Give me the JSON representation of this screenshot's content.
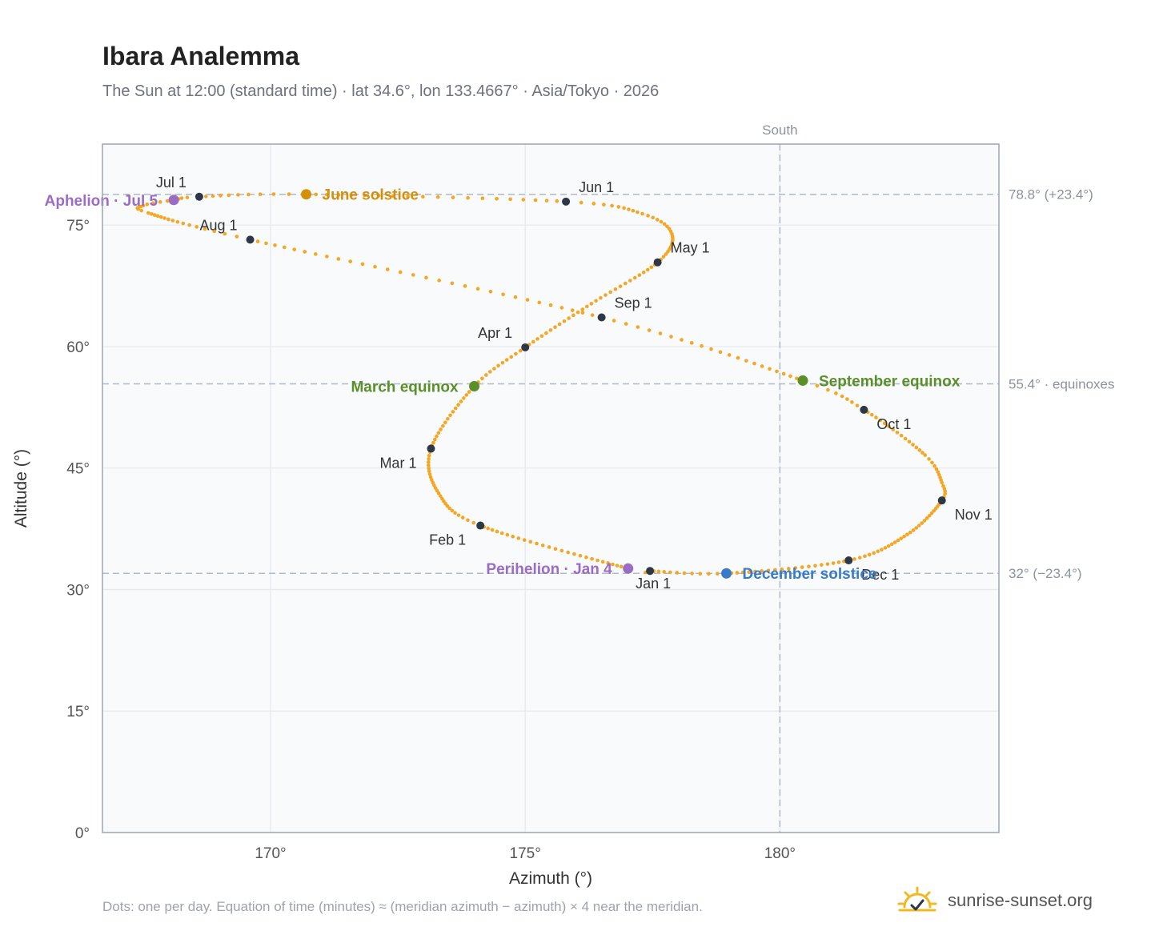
{
  "title": "Ibara Analemma",
  "subtitle": "The Sun at 12:00 (standard time) · lat 34.6°, lon 133.4667° · Asia/Tokyo · 2026",
  "footnote": "Dots: one per day. Equation of time (minutes) ≈ (meridian azimuth − azimuth) × 4 near the meridian.",
  "brand": {
    "text": "sunrise-sunset.org",
    "icon": "sun-check-icon"
  },
  "colors": {
    "curve": "#f5a623",
    "month_dot": "#2d3748",
    "solstice_june": "#d4900a",
    "equinox": "#5a8f29",
    "solstice_dec": "#3a7bc8",
    "apsis": "#9b6cc4",
    "plot_bg": "#f8fafc",
    "grid": "#e5e9ee",
    "refline": "#b0bac6",
    "axis_frame": "#9aa5b1"
  },
  "chart_data": {
    "type": "scatter",
    "xlabel": "Azimuth (°)",
    "ylabel": "Altitude (°)",
    "xlim": [
      166.7,
      184.3
    ],
    "ylim": [
      0,
      85
    ],
    "x_ticks": [
      {
        "value": 170,
        "label": "170°"
      },
      {
        "value": 175,
        "label": "175°"
      },
      {
        "value": 180,
        "label": "180°"
      }
    ],
    "y_ticks": [
      {
        "value": 0,
        "label": "0°"
      },
      {
        "value": 15,
        "label": "15°"
      },
      {
        "value": 30,
        "label": "30°"
      },
      {
        "value": 45,
        "label": "45°"
      },
      {
        "value": 60,
        "label": "60°"
      },
      {
        "value": 75,
        "label": "75°"
      }
    ],
    "grid": true,
    "meridian": {
      "value": 180,
      "label": "South"
    },
    "reference_lines": [
      {
        "value": 78.8,
        "label": "78.8° (+23.4°)"
      },
      {
        "value": 55.4,
        "label": "55.4° · equinoxes"
      },
      {
        "value": 32.0,
        "label": "32° (−23.4°)"
      }
    ],
    "curve_anchors": [
      {
        "day": 1,
        "x": 177.45,
        "y": 32.3
      },
      {
        "day": 4,
        "x": 177.02,
        "y": 32.6
      },
      {
        "day": 32,
        "x": 174.12,
        "y": 37.9
      },
      {
        "day": 45,
        "x": 173.3,
        "y": 41.9
      },
      {
        "day": 60,
        "x": 173.15,
        "y": 47.4
      },
      {
        "day": 79,
        "x": 174.0,
        "y": 55.1
      },
      {
        "day": 91,
        "x": 175.0,
        "y": 59.9
      },
      {
        "day": 106,
        "x": 176.3,
        "y": 65.3
      },
      {
        "day": 121,
        "x": 177.6,
        "y": 70.4
      },
      {
        "day": 133,
        "x": 177.88,
        "y": 73.9
      },
      {
        "day": 142,
        "x": 177.3,
        "y": 76.4
      },
      {
        "day": 152,
        "x": 175.8,
        "y": 77.9
      },
      {
        "day": 172,
        "x": 170.7,
        "y": 78.8
      },
      {
        "day": 182,
        "x": 168.6,
        "y": 78.5
      },
      {
        "day": 186,
        "x": 168.1,
        "y": 78.1
      },
      {
        "day": 191,
        "x": 167.5,
        "y": 77.4
      },
      {
        "day": 197,
        "x": 167.6,
        "y": 76.5
      },
      {
        "day": 213,
        "x": 169.6,
        "y": 73.2
      },
      {
        "day": 244,
        "x": 176.5,
        "y": 63.6
      },
      {
        "day": 266,
        "x": 180.45,
        "y": 55.8
      },
      {
        "day": 274,
        "x": 181.65,
        "y": 52.2
      },
      {
        "day": 290,
        "x": 182.85,
        "y": 46.6
      },
      {
        "day": 299,
        "x": 183.18,
        "y": 43.2
      },
      {
        "day": 305,
        "x": 183.18,
        "y": 41.0
      },
      {
        "day": 320,
        "x": 182.5,
        "y": 36.8
      },
      {
        "day": 335,
        "x": 181.35,
        "y": 33.6
      },
      {
        "day": 355,
        "x": 178.95,
        "y": 32.0
      },
      {
        "day": 366,
        "x": 177.45,
        "y": 32.3
      }
    ],
    "month_markers": [
      {
        "label": "Jan 1",
        "x": 177.45,
        "y": 32.3,
        "anchor": "below"
      },
      {
        "label": "Feb 1",
        "x": 174.12,
        "y": 37.9,
        "anchor": "left-below"
      },
      {
        "label": "Mar 1",
        "x": 173.15,
        "y": 47.4,
        "anchor": "left-below"
      },
      {
        "label": "Apr 1",
        "x": 175.0,
        "y": 59.9,
        "anchor": "left-above"
      },
      {
        "label": "May 1",
        "x": 177.6,
        "y": 70.4,
        "anchor": "right-above"
      },
      {
        "label": "Jun 1",
        "x": 175.8,
        "y": 77.9,
        "anchor": "right-above"
      },
      {
        "label": "Jul 1",
        "x": 168.6,
        "y": 78.5,
        "anchor": "left-above"
      },
      {
        "label": "Aug 1",
        "x": 169.6,
        "y": 73.2,
        "anchor": "left-above"
      },
      {
        "label": "Sep 1",
        "x": 176.5,
        "y": 63.6,
        "anchor": "right-above"
      },
      {
        "label": "Oct 1",
        "x": 181.65,
        "y": 52.2,
        "anchor": "right-below"
      },
      {
        "label": "Nov 1",
        "x": 183.18,
        "y": 41.0,
        "anchor": "right-below"
      },
      {
        "label": "Dec 1",
        "x": 181.35,
        "y": 33.6,
        "anchor": "right-below"
      }
    ],
    "events": [
      {
        "label": "June solstice",
        "x": 170.7,
        "y": 78.8,
        "color_key": "solstice_june",
        "side": "right"
      },
      {
        "label": "March equinox",
        "x": 174.0,
        "y": 55.1,
        "color_key": "equinox",
        "side": "left"
      },
      {
        "label": "September equinox",
        "x": 180.45,
        "y": 55.8,
        "color_key": "equinox",
        "side": "right"
      },
      {
        "label": "December solstice",
        "x": 178.95,
        "y": 32.0,
        "color_key": "solstice_dec",
        "side": "right"
      },
      {
        "label": "Perihelion · Jan 4",
        "x": 177.02,
        "y": 32.6,
        "color_key": "apsis",
        "side": "left"
      },
      {
        "label": "Aphelion · Jul 5",
        "x": 168.1,
        "y": 78.1,
        "color_key": "apsis",
        "side": "left"
      }
    ]
  }
}
